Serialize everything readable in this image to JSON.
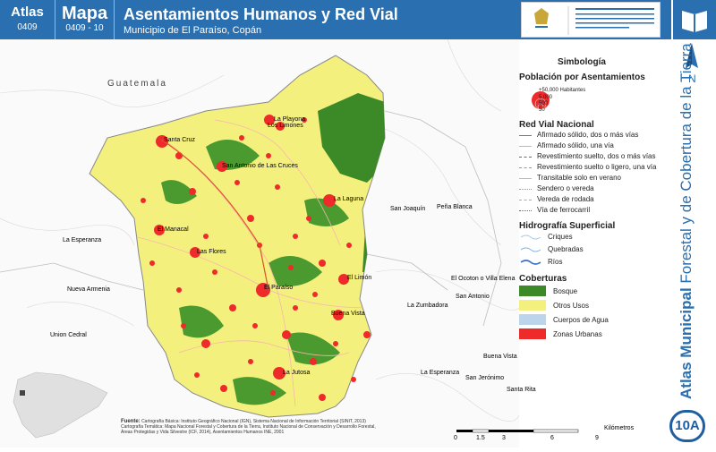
{
  "header": {
    "atlas_label": "Atlas",
    "atlas_code": "0409",
    "map_label": "Mapa",
    "map_code": "0409 - 10",
    "title": "Asentamientos Humanos y Red Vial",
    "subtitle": "Municipio de El Paraíso, Copán"
  },
  "side": {
    "bold": "Atlas Municipal",
    "rest": " Forestal y de Cobertura de la Tierra",
    "badge": "10A",
    "north": "N"
  },
  "legend": {
    "title": "Simbología",
    "population_title": "Población por Asentamientos",
    "population_levels": [
      "+50,000 Habitantes",
      "5,000",
      "500",
      "50"
    ],
    "roads_title": "Red Vial Nacional",
    "roads": [
      {
        "label": "Afirmado sólido, dos o más vías",
        "color": "#e0502a",
        "style": "solid"
      },
      {
        "label": "Afirmado sólido, una vía",
        "color": "#f2a39a",
        "style": "solid"
      },
      {
        "label": "Revestimiento suelto, dos o más vías",
        "color": "#d13a3a",
        "style": "dashed"
      },
      {
        "label": "Revestimiento suelto o ligero, una vía",
        "color": "#e07a7a",
        "style": "dashed"
      },
      {
        "label": "Transitable solo en verano",
        "color": "#b9b9b9",
        "style": "solid"
      },
      {
        "label": "Sendero o vereda",
        "color": "#999999",
        "style": "dotted"
      },
      {
        "label": "Vereda de rodada",
        "color": "#aaaaaa",
        "style": "dashed"
      },
      {
        "label": "Vía de ferrocarril",
        "color": "#666666",
        "style": "dotted"
      }
    ],
    "hydro_title": "Hidrografía Superficial",
    "hydro": [
      {
        "label": "Criques",
        "color": "#a7c8e8"
      },
      {
        "label": "Quebradas",
        "color": "#7fb3e0"
      },
      {
        "label": "Ríos",
        "color": "#3b6fc4"
      }
    ],
    "cover_title": "Coberturas",
    "covers": [
      {
        "label": "Bosque",
        "color": "#3c8a27"
      },
      {
        "label": "Otros Usos",
        "color": "#f4f07e"
      },
      {
        "label": "Cuerpos de Agua",
        "color": "#bcd4ec"
      },
      {
        "label": "Zonas Urbanas",
        "color": "#ee2a2a"
      }
    ]
  },
  "map": {
    "country": "Guatemala",
    "settlements": [
      {
        "name": "La Playona"
      },
      {
        "name": "Los Limones"
      },
      {
        "name": "Santa Cruz"
      },
      {
        "name": "San Antonio de Las Cruces"
      },
      {
        "name": "La Laguna"
      },
      {
        "name": "El Manacal"
      },
      {
        "name": "Las Flores"
      },
      {
        "name": "El Limón"
      },
      {
        "name": "El Paraíso"
      },
      {
        "name": "Buena Vista"
      },
      {
        "name": "La Jutosa"
      }
    ],
    "outside_places": [
      {
        "name": "San Joaquín"
      },
      {
        "name": "Peña Blanca"
      },
      {
        "name": "La Esperanza"
      },
      {
        "name": "Nueva Armenia"
      },
      {
        "name": "Union Cedral"
      },
      {
        "name": "El Ocoton o Villa Elena"
      },
      {
        "name": "San Antonio"
      },
      {
        "name": "La Zumbadora"
      },
      {
        "name": "Buena Vista"
      },
      {
        "name": "La Esperanza"
      },
      {
        "name": "San Jerónimo"
      },
      {
        "name": "Santa Rita"
      }
    ]
  },
  "footer": {
    "fuente_label": "Fuente:",
    "lines": [
      "Cartografía Básica: Instituto Geográfico Nacional (IGN), Sistema Nacional de Información Territorial (SINIT, 2013)",
      "Cartografía Temática: Mapa Nacional Forestal y Cobertura de la Tierra, Instituto Nacional de Conservación y Desarrollo Forestal,",
      "Áreas Protegidas y Vida Silvestre (ICF, 2014), Asentamientos Humanos INE, 2001"
    ]
  },
  "scale": {
    "ticks": [
      "0",
      "1.5",
      "3",
      "6",
      "9"
    ],
    "unit": "Kilómetros"
  }
}
